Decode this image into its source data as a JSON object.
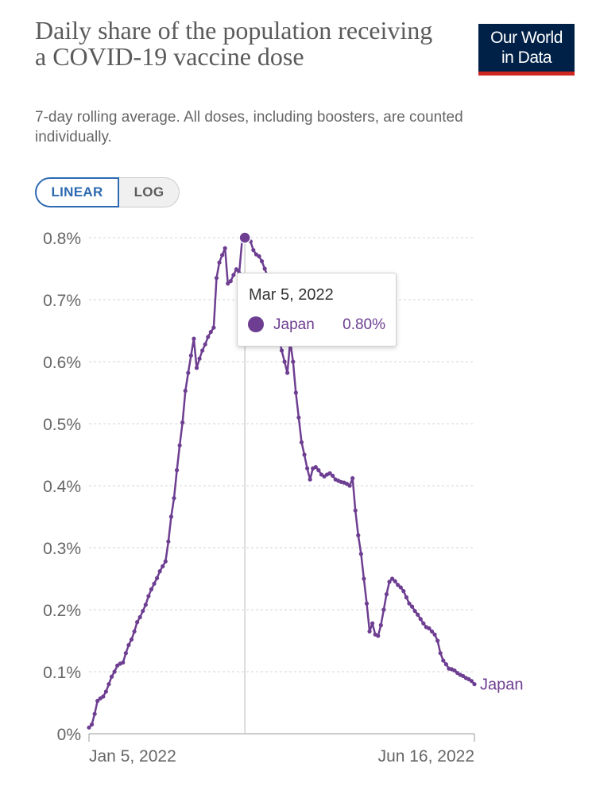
{
  "header": {
    "title": "Daily share of the population receiving a COVID-19 vaccine dose",
    "subtitle": "7-day rolling average. All doses, including boosters, are counted individually.",
    "logo_line1": "Our World",
    "logo_line2": "in Data"
  },
  "controls": {
    "linear_label": "LINEAR",
    "log_label": "LOG",
    "active": "linear"
  },
  "tooltip": {
    "date": "Mar 5, 2022",
    "series": "Japan",
    "value": "0.80%"
  },
  "colors": {
    "series": "#6d3e91",
    "accent": "#2d6ab1",
    "logo_bg": "#002147",
    "logo_bar": "#ce261e"
  },
  "chart_data": {
    "type": "line",
    "title": "Daily share of the population receiving a COVID-19 vaccine dose",
    "subtitle": "7-day rolling average. All doses, including boosters, are counted individually.",
    "x_start": "Jan 5, 2022",
    "x_end": "Jun 16, 2022",
    "x_tick_labels": [
      "Jan 5, 2022",
      "Jun 16, 2022"
    ],
    "y_tick_labels": [
      "0%",
      "0.1%",
      "0.2%",
      "0.3%",
      "0.4%",
      "0.5%",
      "0.6%",
      "0.7%",
      "0.8%"
    ],
    "ylim": [
      0,
      0.8
    ],
    "grid": "horizontal dashed",
    "highlight": {
      "date": "Mar 5, 2022",
      "value": 0.8
    },
    "series": [
      {
        "name": "Japan",
        "values": [
          0.01,
          0.015,
          0.032,
          0.053,
          0.057,
          0.06,
          0.068,
          0.08,
          0.092,
          0.1,
          0.11,
          0.113,
          0.115,
          0.13,
          0.143,
          0.152,
          0.165,
          0.18,
          0.188,
          0.198,
          0.208,
          0.222,
          0.233,
          0.242,
          0.251,
          0.262,
          0.27,
          0.278,
          0.31,
          0.35,
          0.38,
          0.425,
          0.465,
          0.502,
          0.553,
          0.582,
          0.61,
          0.637,
          0.59,
          0.605,
          0.618,
          0.628,
          0.64,
          0.648,
          0.655,
          0.735,
          0.76,
          0.772,
          0.783,
          0.726,
          0.73,
          0.74,
          0.749,
          0.743,
          0.795,
          0.8,
          0.798,
          0.794,
          0.78,
          0.773,
          0.77,
          0.762,
          0.75,
          0.738,
          0.72,
          0.7,
          0.68,
          0.64,
          0.618,
          0.6,
          0.582,
          0.633,
          0.6,
          0.55,
          0.51,
          0.47,
          0.45,
          0.428,
          0.41,
          0.428,
          0.43,
          0.425,
          0.418,
          0.415,
          0.418,
          0.42,
          0.416,
          0.41,
          0.408,
          0.406,
          0.405,
          0.403,
          0.4,
          0.412,
          0.36,
          0.32,
          0.29,
          0.25,
          0.21,
          0.165,
          0.178,
          0.16,
          0.158,
          0.175,
          0.2,
          0.225,
          0.245,
          0.25,
          0.246,
          0.24,
          0.236,
          0.23,
          0.22,
          0.21,
          0.205,
          0.198,
          0.192,
          0.185,
          0.178,
          0.172,
          0.17,
          0.165,
          0.16,
          0.15,
          0.13,
          0.118,
          0.112,
          0.105,
          0.104,
          0.102,
          0.098,
          0.095,
          0.093,
          0.09,
          0.088,
          0.085,
          0.08
        ]
      }
    ]
  }
}
